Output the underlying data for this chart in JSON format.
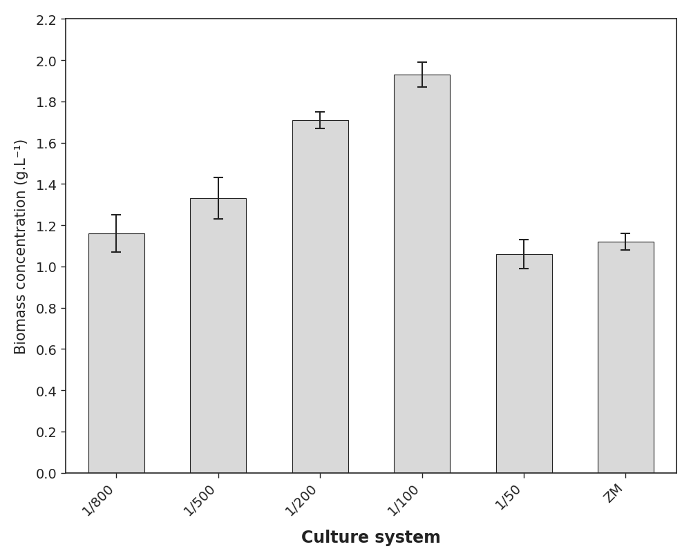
{
  "categories": [
    "1/800",
    "1/500",
    "1/200",
    "1/100",
    "1/50",
    "ZM"
  ],
  "values": [
    1.16,
    1.33,
    1.71,
    1.93,
    1.06,
    1.12
  ],
  "errors": [
    0.09,
    0.1,
    0.04,
    0.06,
    0.07,
    0.04
  ],
  "bar_color": "#d9d9d9",
  "bar_edgecolor": "#222222",
  "ylabel": "Biomass concentration (g.L⁻¹)",
  "xlabel": "Culture system",
  "ylim": [
    0.0,
    2.2
  ],
  "yticks": [
    0.0,
    0.2,
    0.4,
    0.6,
    0.8,
    1.0,
    1.2,
    1.4,
    1.6,
    1.8,
    2.0,
    2.2
  ],
  "figsize": [
    10.0,
    8.12
  ],
  "dpi": 100,
  "bar_width": 0.55,
  "background_color": "#ffffff",
  "plot_bg_color": "#ffffff",
  "spine_color": "#222222",
  "tick_color": "#222222",
  "ylabel_fontsize": 15,
  "xlabel_fontsize": 17,
  "tick_fontsize": 14,
  "errorbar_color": "#222222",
  "errorbar_capsize": 5,
  "errorbar_linewidth": 1.5,
  "errorbar_capthick": 1.5,
  "xtick_rotation": 45
}
